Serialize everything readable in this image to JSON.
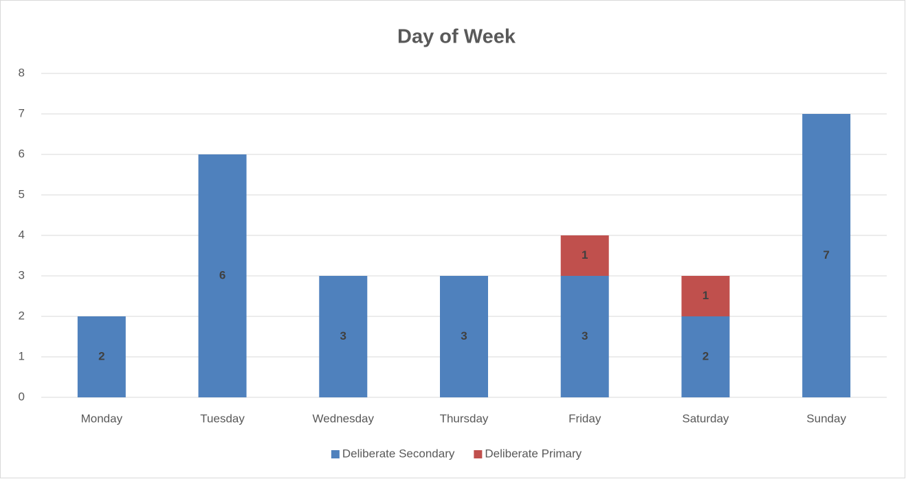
{
  "chart_data": {
    "type": "stacked_bar",
    "title": "Day of Week",
    "categories": [
      "Monday",
      "Tuesday",
      "Wednesday",
      "Thursday",
      "Friday",
      "Saturday",
      "Sunday"
    ],
    "series": [
      {
        "name": "Deliberate Secondary",
        "color": "#4f81bd",
        "values": [
          2,
          6,
          3,
          3,
          3,
          2,
          7
        ]
      },
      {
        "name": "Deliberate Primary",
        "color": "#c0504d",
        "values": [
          null,
          null,
          null,
          null,
          1,
          1,
          null
        ]
      }
    ],
    "ylim": [
      0,
      8
    ],
    "yticks": [
      0,
      1,
      2,
      3,
      4,
      5,
      6,
      7,
      8
    ],
    "grid": true,
    "legend": "bottom"
  }
}
